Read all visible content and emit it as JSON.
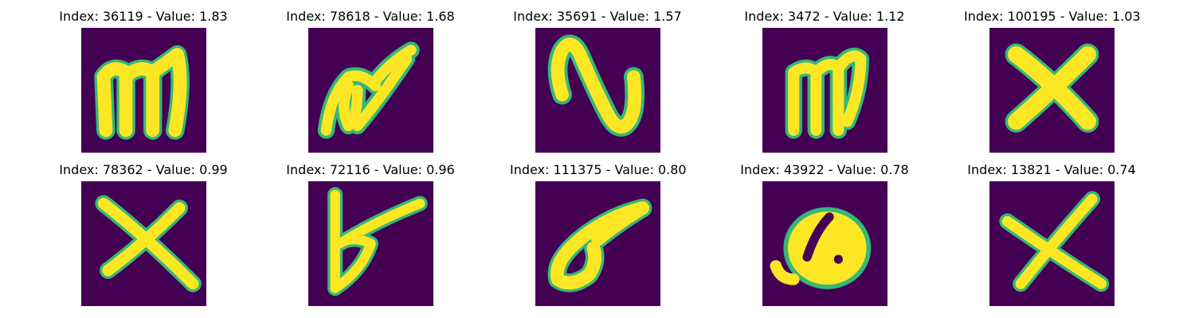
{
  "colors": {
    "background": "#440154",
    "foreground": "#fde725",
    "edge": "#35b779",
    "mid": "#21918c"
  },
  "panels": [
    {
      "title": "Index: 36119 - Value: 1.83",
      "glyph": "m"
    },
    {
      "title": "Index: 78618 - Value: 1.68",
      "glyph": "alpha-like"
    },
    {
      "title": "Index: 35691 - Value: 1.57",
      "glyph": "N"
    },
    {
      "title": "Index: 3472 - Value: 1.12",
      "glyph": "m"
    },
    {
      "title": "Index: 100195 - Value: 1.03",
      "glyph": "X"
    },
    {
      "title": "Index: 78362 - Value: 0.99",
      "glyph": "X"
    },
    {
      "title": "Index: 72116 - Value: 0.96",
      "glyph": "b"
    },
    {
      "title": "Index: 111375 - Value: 0.80",
      "glyph": "6-like"
    },
    {
      "title": "Index: 43922 - Value: 0.78",
      "glyph": "Q-like"
    },
    {
      "title": "Index: 13821 - Value: 0.74",
      "glyph": "X"
    }
  ]
}
